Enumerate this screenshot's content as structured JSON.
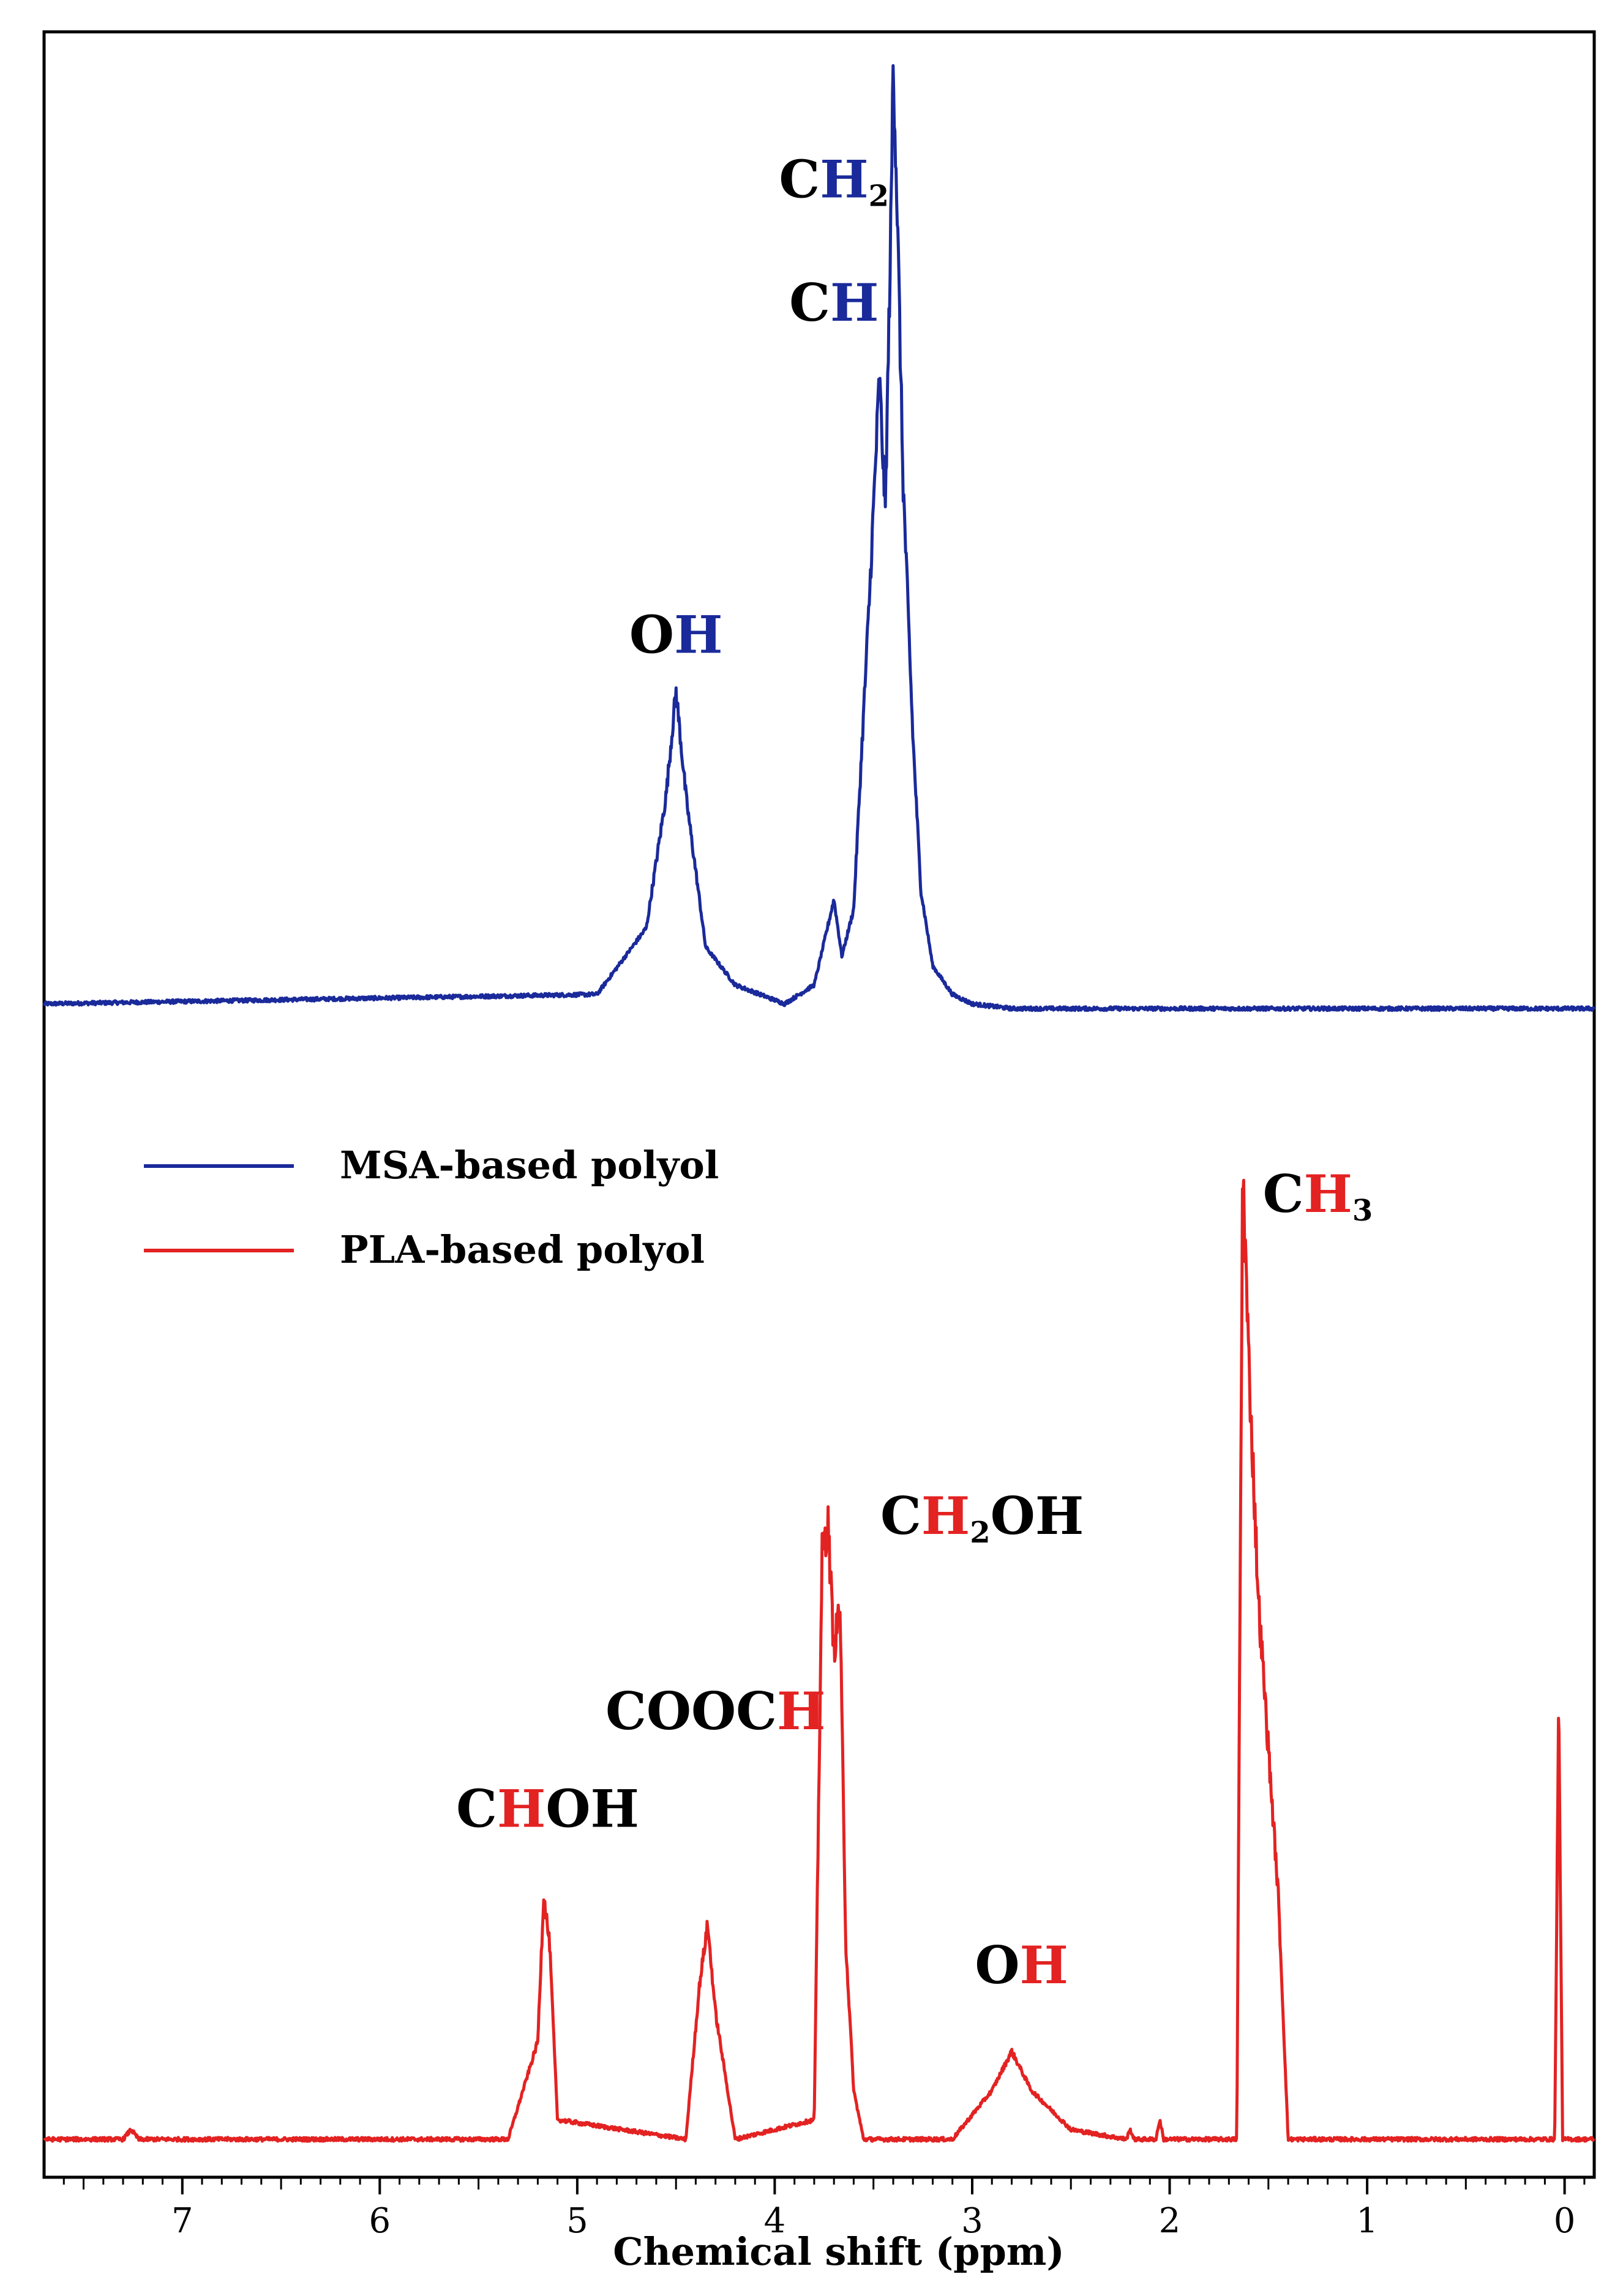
{
  "chart_data": {
    "type": "line",
    "title": "",
    "xlabel": "Chemical shift (ppm)",
    "ylabel": "",
    "x_reversed": true,
    "xlim": [
      7.7,
      -0.15
    ],
    "x_ticks": [
      "7",
      "6",
      "5",
      "4",
      "3",
      "2",
      "1",
      "0"
    ],
    "x_tick_values": [
      7,
      6,
      5,
      4,
      3,
      2,
      1,
      0
    ],
    "grid": false,
    "legend": {
      "position": "middle-left"
    },
    "colors": {
      "msa": "#1a2a9a",
      "pla": "#e32222",
      "axis": "#000000"
    },
    "series": [
      {
        "name": "MSA-based polyol",
        "color": "#1a2a9a",
        "baseline_x": [
          7.7,
          4.9,
          4.65,
          4.55,
          4.5,
          4.45,
          4.35,
          4.2,
          3.95,
          3.8,
          3.7,
          3.66,
          3.6,
          3.52,
          3.47,
          3.44,
          3.41,
          3.4,
          3.38,
          3.35,
          3.3,
          3.26,
          3.2,
          3.1,
          3.0,
          2.8,
          -0.15
        ],
        "baseline_y": [
          0,
          0.01,
          0.08,
          0.22,
          0.33,
          0.22,
          0.06,
          0.02,
          0.0,
          0.02,
          0.11,
          0.05,
          0.1,
          0.43,
          0.66,
          0.52,
          0.84,
          1.0,
          0.84,
          0.55,
          0.28,
          0.12,
          0.04,
          0.01,
          0.0,
          -0.005,
          -0.005
        ]
      },
      {
        "name": "PLA-based polyol",
        "color": "#e32222",
        "baseline_x": [
          7.7,
          7.3,
          7.26,
          7.22,
          5.35,
          5.2,
          5.17,
          5.14,
          5.1,
          4.45,
          4.38,
          4.34,
          4.3,
          4.2,
          3.8,
          3.76,
          3.73,
          3.7,
          3.67,
          3.64,
          3.6,
          3.55,
          3.1,
          2.9,
          2.8,
          2.7,
          2.5,
          2.22,
          2.2,
          2.18,
          2.07,
          2.05,
          2.03,
          1.66,
          1.63,
          1.6,
          1.55,
          1.5,
          1.45,
          1.4,
          0.05,
          0.03,
          0.01,
          -0.15
        ],
        "baseline_y": [
          0,
          0.0,
          0.01,
          0.0,
          0.0,
          0.1,
          0.25,
          0.2,
          0.02,
          0.0,
          0.16,
          0.22,
          0.13,
          0.0,
          0.02,
          0.6,
          0.63,
          0.5,
          0.55,
          0.2,
          0.05,
          0.0,
          0.0,
          0.05,
          0.09,
          0.05,
          0.01,
          0.0,
          0.01,
          0.0,
          0.0,
          0.02,
          0.0,
          0.0,
          1.0,
          0.8,
          0.55,
          0.4,
          0.25,
          0.0,
          0.0,
          0.45,
          0.0,
          0.0
        ]
      }
    ],
    "legend_entries": [
      {
        "label": "MSA-based polyol",
        "color": "#1a2a9a"
      },
      {
        "label": "PLA-based polyol",
        "color": "#e32222"
      }
    ],
    "annotations": [
      {
        "series": "MSA-based polyol",
        "x": 3.7,
        "y": 0.85,
        "text_black": "C",
        "text_colored": "H",
        "sub": "2",
        "suffix": ""
      },
      {
        "series": "MSA-based polyol",
        "x": 3.7,
        "y": 0.72,
        "text_black": "C",
        "text_colored": "H",
        "sub": "",
        "suffix": ""
      },
      {
        "series": "MSA-based polyol",
        "x": 4.5,
        "y": 0.37,
        "text_black": "O",
        "text_colored": "H",
        "sub": "",
        "suffix": ""
      },
      {
        "series": "PLA-based polyol",
        "x": 1.25,
        "y": 0.95,
        "text_black": "C",
        "text_colored": "H",
        "sub": "3",
        "suffix": ""
      },
      {
        "series": "PLA-based polyol",
        "x": 2.95,
        "y": 0.62,
        "text_black": "C",
        "text_colored": "H",
        "sub": "2",
        "suffix": "OH"
      },
      {
        "series": "PLA-based polyol",
        "x": 4.3,
        "y": 0.42,
        "text_black": "COOC",
        "text_colored": "H",
        "sub": "",
        "suffix": ""
      },
      {
        "series": "PLA-based polyol",
        "x": 5.15,
        "y": 0.32,
        "text_black": "C",
        "text_colored": "H",
        "sub": "",
        "suffix": "OH"
      },
      {
        "series": "PLA-based polyol",
        "x": 2.75,
        "y": 0.16,
        "text_black": "O",
        "text_colored": "H",
        "sub": "",
        "suffix": ""
      }
    ]
  }
}
